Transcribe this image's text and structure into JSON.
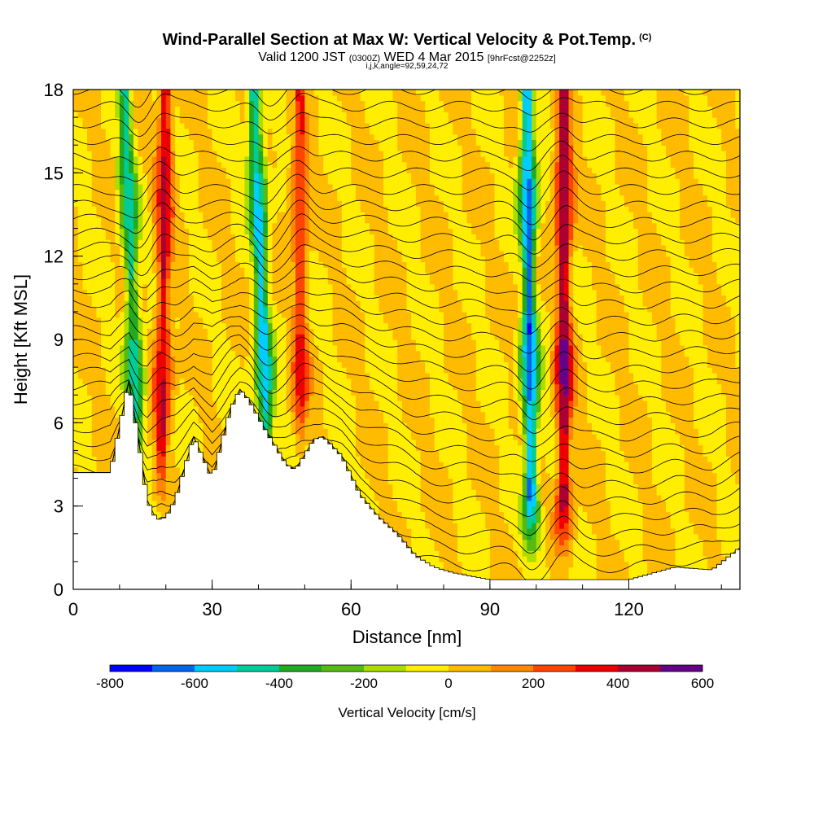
{
  "title": {
    "main": "Wind-Parallel Section at Max W: Vertical Velocity & Pot.Temp.",
    "mark": "(C)",
    "valid_a": "Valid 1200 JST",
    "valid_b": "(0300Z)",
    "valid_c": "WED 4 Mar 2015",
    "valid_d": "[9hrFcst@2252z]",
    "ijk": "i,j,k,angle=92,59,24,72"
  },
  "chart_data": {
    "type": "heatmap",
    "xlabel": "Distance [nm]",
    "ylabel": "Height [Kft MSL]",
    "xlim": [
      0,
      144
    ],
    "ylim": [
      0,
      18
    ],
    "x_ticks": [
      "0",
      "30",
      "60",
      "90",
      "120"
    ],
    "x_tick_values": [
      0,
      30,
      60,
      90,
      120
    ],
    "y_ticks": [
      "0",
      "3",
      "6",
      "9",
      "12",
      "15",
      "18"
    ],
    "y_tick_values": [
      0,
      3,
      6,
      9,
      12,
      15,
      18
    ],
    "colorbar": {
      "label": "Vertical Velocity [cm/s]",
      "range": [
        -800,
        600
      ],
      "step": 100,
      "tick_labels": [
        "-800",
        "-600",
        "-400",
        "-200",
        "0",
        "200",
        "400",
        "600"
      ],
      "colors": [
        "#0000ff",
        "#0066ee",
        "#00ccff",
        "#00cc99",
        "#22aa22",
        "#55bb11",
        "#aadd00",
        "#ffee00",
        "#ffbb00",
        "#ff8800",
        "#ff4400",
        "#ee0000",
        "#aa0033",
        "#660088"
      ]
    },
    "background_value": 0,
    "features": [
      {
        "kind": "downdraft",
        "x_nm": 14,
        "top_x_nm": 11,
        "base_kft": 4.8,
        "peak_cm_s": -450
      },
      {
        "kind": "updraft",
        "x_nm": 19,
        "top_x_nm": 20,
        "base_kft": 3.5,
        "peak_cm_s": 400
      },
      {
        "kind": "downdraft",
        "x_nm": 42,
        "top_x_nm": 39,
        "base_kft": 4.5,
        "peak_cm_s": -550
      },
      {
        "kind": "updraft",
        "x_nm": 49,
        "top_x_nm": 49,
        "base_kft": 5.0,
        "peak_cm_s": 300
      },
      {
        "kind": "downdraft",
        "x_nm": 99,
        "top_x_nm": 98,
        "base_kft": 1.5,
        "peak_cm_s": -650
      },
      {
        "kind": "updraft",
        "x_nm": 106,
        "top_x_nm": 106,
        "base_kft": 1.5,
        "peak_cm_s": 500
      }
    ],
    "terrain_profile": {
      "x_nm": [
        0,
        8,
        12,
        14,
        16,
        18,
        20,
        22,
        26,
        30,
        34,
        36,
        38,
        42,
        46,
        48,
        52,
        54,
        58,
        62,
        66,
        70,
        74,
        78,
        82,
        90,
        100,
        110,
        120,
        130,
        138,
        144
      ],
      "height_kft": [
        4.2,
        4.2,
        7.5,
        5.5,
        3.2,
        2.5,
        2.6,
        3.2,
        5.5,
        4.0,
        6.5,
        7.2,
        6.8,
        5.6,
        4.5,
        4.3,
        5.4,
        5.5,
        4.8,
        3.4,
        2.6,
        2.0,
        1.2,
        0.8,
        0.6,
        0.35,
        0.35,
        0.35,
        0.35,
        0.8,
        0.7,
        1.5
      ]
    },
    "isentropes": {
      "count": 30,
      "base_kft": 0.6,
      "spacing_kft": 0.6
    }
  }
}
